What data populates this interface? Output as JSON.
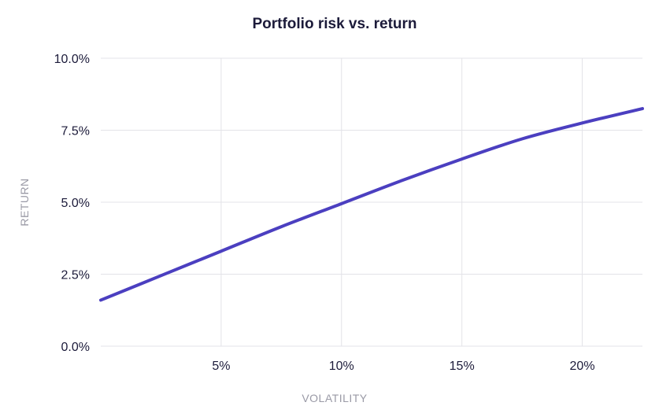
{
  "chart_data": {
    "type": "line",
    "title": "Portfolio risk vs. return",
    "xlabel": "VOLATILITY",
    "ylabel": "RETURN",
    "xlim": [
      0,
      22.5
    ],
    "ylim": [
      0,
      10
    ],
    "x_ticks": [
      {
        "value": 5,
        "label": "5%"
      },
      {
        "value": 10,
        "label": "10%"
      },
      {
        "value": 15,
        "label": "15%"
      },
      {
        "value": 20,
        "label": "20%"
      }
    ],
    "y_ticks": [
      {
        "value": 0,
        "label": "0.0%"
      },
      {
        "value": 2.5,
        "label": "2.5%"
      },
      {
        "value": 5,
        "label": "5.0%"
      },
      {
        "value": 7.5,
        "label": "7.5%"
      },
      {
        "value": 10,
        "label": "10.0%"
      }
    ],
    "grid": true,
    "legend": "none",
    "series": [
      {
        "color": "#4b3fc0",
        "x": [
          0,
          2.5,
          5,
          7.5,
          10,
          12.5,
          15,
          17.5,
          20,
          22.5
        ],
        "y": [
          1.6,
          2.45,
          3.3,
          4.15,
          4.95,
          5.75,
          6.5,
          7.2,
          7.75,
          8.25
        ]
      }
    ]
  }
}
